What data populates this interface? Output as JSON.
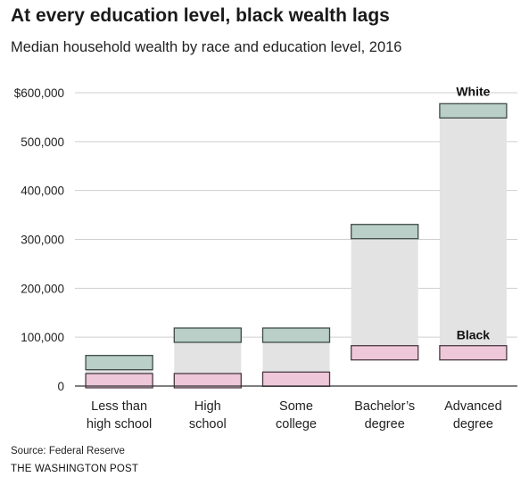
{
  "header": {
    "title": "At every education level, black wealth lags",
    "subtitle": "Median household wealth by race and education level, 2016"
  },
  "footer": {
    "source": "Source: Federal Reserve",
    "publisher": "THE WASHINGTON POST"
  },
  "chart_data": {
    "type": "bar",
    "title": "At every education level, black wealth lags",
    "subtitle": "Median household wealth by race and education level, 2016",
    "categories": [
      [
        "Less than",
        "high school"
      ],
      [
        "High",
        "school"
      ],
      [
        "Some",
        "college"
      ],
      [
        "Bachelor’s",
        "degree"
      ],
      [
        "Advanced",
        "degree"
      ]
    ],
    "series": [
      {
        "name": "White",
        "values": [
          48000,
          104000,
          104000,
          316000,
          563000
        ],
        "color": "#b9cfc8",
        "stroke": "#3f4a47"
      },
      {
        "name": "Black",
        "values": [
          11000,
          11000,
          14000,
          68000,
          68000
        ],
        "color": "#eec7d9",
        "stroke": "#4a3a42"
      }
    ],
    "ylim": [
      0,
      600000
    ],
    "yticks": [
      0,
      100000,
      200000,
      300000,
      400000,
      500000,
      600000
    ],
    "ytick_labels": [
      "0",
      "100,000",
      "200,000",
      "300,000",
      "400,000",
      "500,000",
      "$600,000"
    ],
    "gap_fill_color": "#e3e3e3",
    "grid": true
  }
}
